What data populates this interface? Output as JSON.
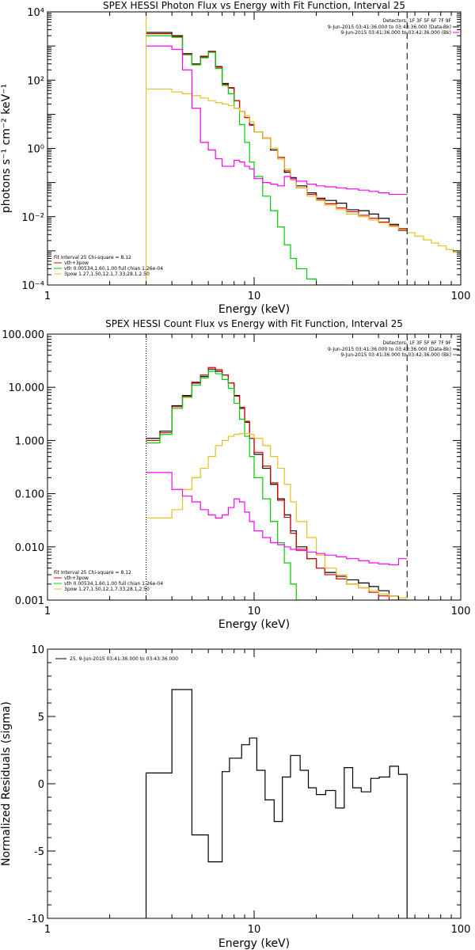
{
  "chart_data": [
    {
      "type": "line",
      "title": "SPEX HESSI Photon Flux vs Energy with Fit Function, Interval 25",
      "xlabel": "Energy (keV)",
      "ylabel": "photons s⁻¹ cm⁻² keV⁻¹",
      "xscale": "log",
      "yscale": "log",
      "xlim": [
        1,
        100
      ],
      "ylim": [
        0.0001,
        10000
      ],
      "xticks": [
        {
          "value": 1,
          "label": "1"
        },
        {
          "value": 10,
          "label": "10"
        },
        {
          "value": 100,
          "label": "100"
        }
      ],
      "yticks": [
        {
          "value": 0.0001,
          "label": "10⁻⁴"
        },
        {
          "value": 0.01,
          "label": "10⁻²"
        },
        {
          "value": 1,
          "label": "10⁰"
        },
        {
          "value": 100,
          "label": "10²"
        },
        {
          "value": 10000,
          "label": "10⁴"
        }
      ],
      "vlines": [
        {
          "x": 3,
          "style": "dotted",
          "color": "#000000"
        },
        {
          "x": 3,
          "style": "solid",
          "color": "#e6c020"
        },
        {
          "x": 55,
          "style": "dashed",
          "color": "#000000"
        }
      ],
      "info": {
        "detectors": "Detectors: 1F 3F 5F 6F 7F 9F",
        "line1": "9-Jun-2015 03:41:36.000 to 03:43:36.000 (Data-Bk)",
        "line2": "9-Jun-2015 03:41:36.000 to 03:42:36.000 (Bk)",
        "line1_color": "#000000",
        "line2_color": "#ff00ff"
      },
      "legend": {
        "header": "Fit Interval 25   Chi-square = 8.12",
        "entries": [
          {
            "label": "vth+3pow",
            "color": "#dd0000"
          },
          {
            "label": "vth 0.00534,1.60,1.00  full chian 1.26e-04",
            "color": "#00cc00"
          },
          {
            "label": "3pow 1.27,1.50,12.1,7.33,28.1,2.50",
            "color": "#e6c020"
          }
        ]
      },
      "edges": [
        3.0,
        3.5,
        4.0,
        4.5,
        5.0,
        5.5,
        6.0,
        6.5,
        7.0,
        7.5,
        8.0,
        8.5,
        9.0,
        9.5,
        10.0,
        11.0,
        12.0,
        13.0,
        14.0,
        15.0,
        16.0,
        18.0,
        20.0,
        22.0,
        25.0,
        28.0,
        32.0,
        36.0,
        40.0,
        45.0,
        50.0,
        55.0,
        60.0,
        66.0,
        72.0,
        78.0,
        85.0,
        92.0,
        100.0
      ],
      "series": [
        {
          "color": "#000000",
          "n": 31,
          "values": [
            2500,
            2500,
            2000,
            600,
            300,
            500,
            700,
            250,
            80,
            60,
            25,
            12,
            8,
            5,
            3,
            2,
            0.9,
            0.5,
            0.2,
            0.14,
            0.08,
            0.05,
            0.035,
            0.03,
            0.025,
            0.016,
            0.015,
            0.012,
            0.009,
            0.006,
            0.004
          ]
        },
        {
          "color": "#dd0000",
          "n": 31,
          "values": [
            2300,
            2300,
            1900,
            580,
            290,
            480,
            680,
            240,
            75,
            58,
            25,
            12,
            8,
            4.8,
            3,
            2,
            1.0,
            0.55,
            0.22,
            0.12,
            0.07,
            0.045,
            0.032,
            0.024,
            0.018,
            0.014,
            0.011,
            0.009,
            0.007,
            0.0055,
            0.0045
          ]
        },
        {
          "color": "#00cc00",
          "n": 25,
          "values": [
            2000,
            2000,
            1800,
            550,
            280,
            450,
            650,
            220,
            70,
            40,
            15,
            5,
            1.5,
            0.4,
            0.15,
            0.04,
            0.015,
            0.005,
            0.0015,
            0.0006,
            0.0003,
            0.00015,
            0.0001,
            0.0001,
            0.0001
          ]
        },
        {
          "color": "#e6c020",
          "n": 38,
          "values": [
            55,
            55,
            45,
            40,
            35,
            30,
            25,
            22,
            20,
            18,
            15,
            12,
            9,
            6,
            3,
            2,
            1.0,
            0.5,
            0.25,
            0.12,
            0.07,
            0.04,
            0.03,
            0.022,
            0.016,
            0.012,
            0.01,
            0.008,
            0.0065,
            0.0052,
            0.0042,
            0.0034,
            0.0027,
            0.0021,
            0.0017,
            0.0014,
            0.0011,
            0.0009
          ]
        },
        {
          "color": "#ff00ff",
          "n": 31,
          "values": [
            1000,
            1000,
            800,
            200,
            15,
            1.5,
            0.9,
            0.5,
            0.3,
            0.3,
            0.45,
            0.4,
            0.3,
            0.25,
            0.13,
            0.1,
            0.09,
            0.08,
            0.15,
            0.13,
            0.11,
            0.09,
            0.08,
            0.075,
            0.07,
            0.065,
            0.06,
            0.055,
            0.05,
            0.045,
            0.045
          ]
        }
      ]
    },
    {
      "type": "line",
      "title": "SPEX HESSI Count Flux vs Energy with Fit Function, Interval 25",
      "xlabel": "Energy (keV)",
      "ylabel": "",
      "xscale": "log",
      "yscale": "log",
      "xlim": [
        1,
        100
      ],
      "ylim": [
        0.001,
        100
      ],
      "xticks": [
        {
          "value": 1,
          "label": "1"
        },
        {
          "value": 10,
          "label": "10"
        },
        {
          "value": 100,
          "label": "100"
        }
      ],
      "yticks": [
        {
          "value": 0.001,
          "label": "0.001"
        },
        {
          "value": 0.01,
          "label": "0.010"
        },
        {
          "value": 0.1,
          "label": "0.100"
        },
        {
          "value": 1,
          "label": "1.000"
        },
        {
          "value": 10,
          "label": "10.000"
        },
        {
          "value": 100,
          "label": "100.000"
        }
      ],
      "vlines": [
        {
          "x": 3,
          "style": "dotted",
          "color": "#000000"
        },
        {
          "x": 55,
          "style": "dashed",
          "color": "#000000"
        }
      ],
      "info": {
        "detectors": "Detectors: 1F 3F 5F 6F 7F 9F",
        "line1": "9-Jun-2015 03:41:36.000 to 03:43:36.000 (Data-Bk)",
        "line2": "9-Jun-2015 03:41:36.000 to 03:42:36.000 (Bk)",
        "line1_color": "#000000",
        "line2_color": "#ff00ff"
      },
      "legend": {
        "header": "Fit Interval 25   Chi-square = 8.12",
        "entries": [
          {
            "label": "vth+3pow",
            "color": "#dd0000"
          },
          {
            "label": "vth 0.00534,1.60,1.00  full chian 1.26e-04",
            "color": "#00cc00"
          },
          {
            "label": "3pow 1.27,1.50,12.1,7.33,28.1,2.50",
            "color": "#e6c020"
          }
        ]
      },
      "edges": [
        3.0,
        3.5,
        4.0,
        4.5,
        5.0,
        5.5,
        6.0,
        6.5,
        7.0,
        7.5,
        8.0,
        8.5,
        9.0,
        9.5,
        10.0,
        11.0,
        12.0,
        13.0,
        14.0,
        15.0,
        16.0,
        18.0,
        20.0,
        22.0,
        25.0,
        28.0,
        32.0,
        36.0,
        40.0,
        45.0,
        50.0,
        55.0
      ],
      "series": [
        {
          "color": "#000000",
          "n": 31,
          "values": [
            1.1,
            1.5,
            4.5,
            7,
            12,
            16,
            22,
            20,
            17,
            12,
            7,
            4,
            2.2,
            1.1,
            0.55,
            0.3,
            0.15,
            0.08,
            0.04,
            0.02,
            0.01,
            0.006,
            0.004,
            0.0033,
            0.0028,
            0.0024,
            0.0021,
            0.0018,
            0.0015,
            0.0012,
            0.001
          ]
        },
        {
          "color": "#dd0000",
          "n": 31,
          "values": [
            1.0,
            1.4,
            4.3,
            6.8,
            12.5,
            17,
            23.5,
            21.5,
            17,
            12,
            6.8,
            4.2,
            2.3,
            1.1,
            0.6,
            0.33,
            0.16,
            0.075,
            0.036,
            0.018,
            0.009,
            0.006,
            0.004,
            0.003,
            0.0025,
            0.002,
            0.0017,
            0.0014,
            0.0012,
            0.001,
            0.0009
          ]
        },
        {
          "color": "#00cc00",
          "n": 22,
          "values": [
            0.9,
            1.3,
            4,
            6.5,
            11,
            15,
            20,
            18,
            14,
            9.5,
            5,
            2.5,
            1.2,
            0.5,
            0.2,
            0.08,
            0.03,
            0.012,
            0.005,
            0.002,
            0.001,
            0.001
          ]
        },
        {
          "color": "#e6c020",
          "n": 31,
          "values": [
            0.035,
            0.035,
            0.05,
            0.12,
            0.2,
            0.3,
            0.5,
            0.8,
            1.0,
            1.2,
            1.3,
            1.35,
            1.35,
            1.3,
            1.1,
            0.8,
            0.5,
            0.3,
            0.15,
            0.07,
            0.03,
            0.015,
            0.007,
            0.004,
            0.003,
            0.002,
            0.0017,
            0.0015,
            0.0013,
            0.0012,
            0.0011
          ]
        },
        {
          "color": "#ff00ff",
          "n": 31,
          "values": [
            0.25,
            0.25,
            0.12,
            0.09,
            0.07,
            0.05,
            0.04,
            0.035,
            0.04,
            0.055,
            0.08,
            0.07,
            0.045,
            0.03,
            0.02,
            0.015,
            0.012,
            0.011,
            0.01,
            0.009,
            0.0085,
            0.008,
            0.0075,
            0.007,
            0.0065,
            0.006,
            0.0055,
            0.005,
            0.0048,
            0.0046,
            0.006
          ]
        }
      ]
    },
    {
      "type": "line",
      "title": "",
      "xlabel": "Energy (keV)",
      "ylabel": "Normalized Residuals (sigma)",
      "xscale": "log",
      "yscale": "linear",
      "xlim": [
        1,
        100
      ],
      "ylim": [
        -10,
        10
      ],
      "xticks": [
        {
          "value": 1,
          "label": "1"
        },
        {
          "value": 10,
          "label": "10"
        },
        {
          "value": 100,
          "label": "100"
        }
      ],
      "yticks": [
        {
          "value": -10,
          "label": "-10"
        },
        {
          "value": -5,
          "label": "-5"
        },
        {
          "value": 0,
          "label": "0"
        },
        {
          "value": 5,
          "label": "5"
        },
        {
          "value": 10,
          "label": "10"
        }
      ],
      "vlines": [],
      "legend": {
        "header": "",
        "entries": [
          {
            "label": "25.  9-Jun-2015 03:41:36.000 to 03:43:36.000",
            "color": "#000000"
          }
        ]
      },
      "edges": [
        3.0,
        4.0,
        5.0,
        6.0,
        7.0,
        7.6,
        8.7,
        9.5,
        10.3,
        11.3,
        12.5,
        13.7,
        15.0,
        16.7,
        18.3,
        20.0,
        22.2,
        24.8,
        27.3,
        30.0,
        33.0,
        36.7,
        40.3,
        45.3,
        50.0,
        55.0
      ],
      "series": [
        {
          "color": "#000000",
          "n": 25,
          "values": [
            0.8,
            7.0,
            -3.8,
            -5.8,
            0.9,
            1.9,
            2.9,
            3.4,
            1.0,
            -1.2,
            -2.8,
            0.5,
            2.1,
            1.0,
            -0.3,
            -0.8,
            -0.5,
            -1.8,
            1.2,
            -0.3,
            -0.6,
            0.4,
            0.5,
            1.3,
            0.7
          ],
          "close": -10
        }
      ]
    }
  ]
}
